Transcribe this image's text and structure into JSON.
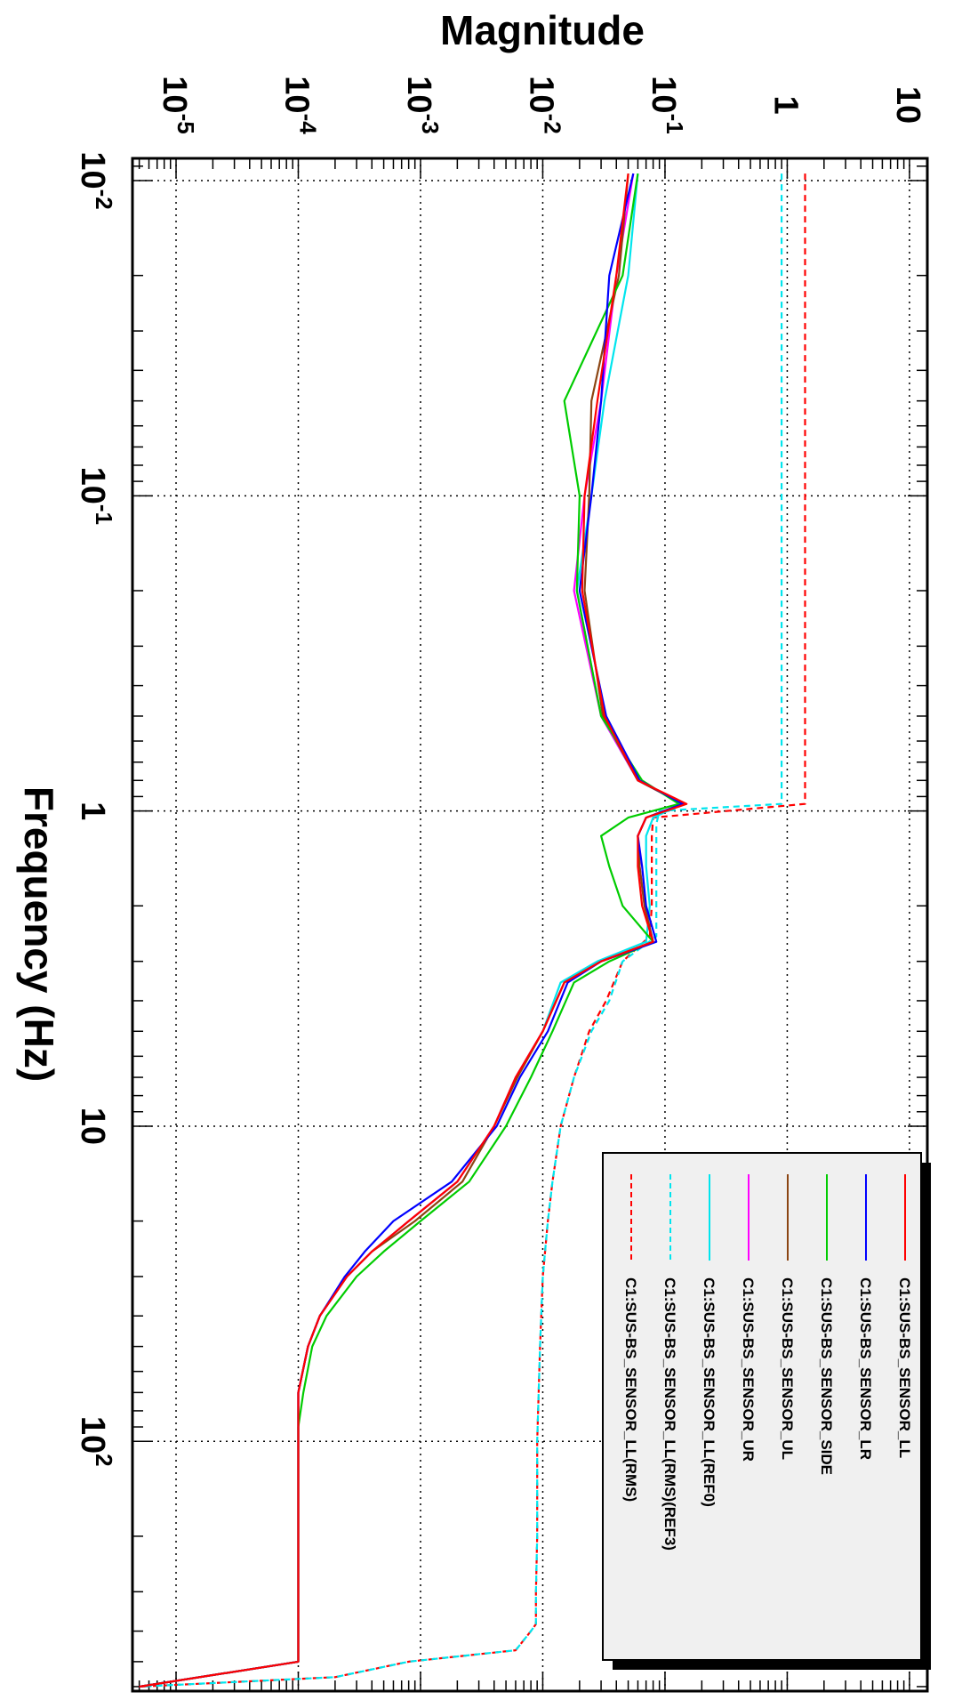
{
  "chart_data": {
    "type": "line",
    "orientation": "rotated-90-clockwise",
    "xlabel": "Frequency (Hz)",
    "ylabel": "Magnitude",
    "x_scale": "log",
    "y_scale": "log",
    "xlim": [
      0.0085,
      620
    ],
    "ylim": [
      4.4e-06,
      14
    ],
    "grid": true,
    "legend_position": "bottom-right",
    "x_ticks": [
      {
        "base": "10",
        "exp": "-2",
        "value": 0.01
      },
      {
        "base": "10",
        "exp": "-1",
        "value": 0.1
      },
      {
        "base": "1",
        "exp": "",
        "value": 1
      },
      {
        "base": "10",
        "exp": "",
        "value": 10
      },
      {
        "base": "10",
        "exp": "2",
        "value": 100
      }
    ],
    "y_ticks": [
      {
        "base": "10",
        "exp": "-5",
        "value": 1e-05
      },
      {
        "base": "10",
        "exp": "-4",
        "value": 0.0001
      },
      {
        "base": "10",
        "exp": "-3",
        "value": 0.001
      },
      {
        "base": "10",
        "exp": "-2",
        "value": 0.01
      },
      {
        "base": "10",
        "exp": "-1",
        "value": 0.1
      },
      {
        "base": "1",
        "exp": "",
        "value": 1
      },
      {
        "base": "10",
        "exp": "",
        "value": 10
      }
    ],
    "series": [
      {
        "name": "C1:SUS-BS_SENSOR_LL",
        "color": "#ff0000",
        "dash": "solid",
        "x": [
          0.0095,
          0.02,
          0.05,
          0.1,
          0.2,
          0.5,
          0.8,
          0.95,
          1.05,
          1.2,
          1.5,
          2.0,
          2.6,
          3.0,
          3.5,
          5,
          7,
          10,
          15,
          20,
          25,
          30,
          40,
          50,
          70,
          90,
          120,
          160,
          200,
          300,
          400,
          500,
          600
        ],
        "y": [
          0.05,
          0.04,
          0.028,
          0.022,
          0.021,
          0.032,
          0.06,
          0.15,
          0.07,
          0.06,
          0.06,
          0.065,
          0.08,
          0.03,
          0.015,
          0.01,
          0.006,
          0.004,
          0.002,
          0.0008,
          0.0004,
          0.00025,
          0.00015,
          0.00012,
          0.0001,
          0.0001,
          0.0001,
          0.0001,
          0.0001,
          0.0001,
          0.0001,
          0.0001,
          5e-06
        ]
      },
      {
        "name": "C1:SUS-BS_SENSOR_LR",
        "color": "#0000ff",
        "dash": "solid",
        "x": [
          0.0095,
          0.02,
          0.05,
          0.1,
          0.2,
          0.5,
          0.8,
          0.95,
          1.05,
          1.2,
          1.5,
          2.0,
          2.6,
          3.0,
          3.5,
          5,
          7,
          10,
          15,
          20,
          25,
          30,
          40,
          50,
          70,
          90,
          120,
          160,
          200,
          300,
          400,
          500,
          600
        ],
        "y": [
          0.055,
          0.035,
          0.03,
          0.025,
          0.02,
          0.033,
          0.062,
          0.14,
          0.07,
          0.06,
          0.065,
          0.07,
          0.085,
          0.03,
          0.016,
          0.011,
          0.0065,
          0.0042,
          0.0018,
          0.0006,
          0.00035,
          0.00024,
          0.00015,
          0.00012,
          0.0001,
          0.0001,
          0.0001,
          0.0001,
          0.0001,
          0.0001,
          0.0001,
          0.0001,
          5e-06
        ]
      },
      {
        "name": "C1:SUS-BS_SENSOR_SIDE",
        "color": "#00cc00",
        "dash": "solid",
        "x": [
          0.0095,
          0.02,
          0.05,
          0.1,
          0.2,
          0.5,
          0.8,
          0.95,
          1.05,
          1.2,
          1.5,
          2.0,
          2.6,
          3.0,
          3.5,
          5,
          7,
          10,
          15,
          20,
          25,
          30,
          40,
          50,
          70,
          90,
          120,
          160,
          200,
          300,
          400,
          500,
          600
        ],
        "y": [
          0.06,
          0.045,
          0.015,
          0.02,
          0.019,
          0.03,
          0.065,
          0.13,
          0.05,
          0.03,
          0.035,
          0.045,
          0.08,
          0.035,
          0.018,
          0.012,
          0.008,
          0.005,
          0.0025,
          0.001,
          0.0005,
          0.0003,
          0.00017,
          0.00013,
          0.00011,
          0.0001,
          0.0001,
          0.0001,
          0.0001,
          0.0001,
          0.0001,
          0.0001,
          5e-06
        ]
      },
      {
        "name": "C1:SUS-BS_SENSOR_UL",
        "color": "#8b4513",
        "dash": "solid",
        "x": [
          0.0095,
          0.02,
          0.05,
          0.1,
          0.2,
          0.5,
          0.8,
          0.95,
          1.05,
          1.2,
          1.5,
          2.0,
          2.6,
          3.0,
          3.5,
          5,
          7,
          10,
          15,
          20,
          25,
          30,
          40,
          50,
          70,
          90,
          120,
          160,
          200,
          300,
          400,
          500,
          600
        ],
        "y": [
          0.05,
          0.042,
          0.025,
          0.024,
          0.022,
          0.031,
          0.06,
          0.14,
          0.07,
          0.06,
          0.062,
          0.068,
          0.08,
          0.03,
          0.015,
          0.01,
          0.0062,
          0.004,
          0.0022,
          0.0009,
          0.0004,
          0.00025,
          0.00015,
          0.00012,
          0.0001,
          0.0001,
          0.0001,
          0.0001,
          0.0001,
          0.0001,
          0.0001,
          0.0001,
          5e-06
        ]
      },
      {
        "name": "C1:SUS-BS_SENSOR_UR",
        "color": "#ff00ff",
        "dash": "solid",
        "x": [
          0.0095,
          0.02,
          0.05,
          0.1,
          0.2,
          0.5,
          0.8,
          0.95,
          1.05,
          1.2,
          1.5,
          2.0,
          2.6,
          3.0,
          3.5,
          5,
          7,
          10,
          15,
          20,
          25,
          30,
          40,
          50,
          70,
          90,
          120,
          160,
          200,
          300,
          400,
          500,
          600
        ],
        "y": [
          0.055,
          0.04,
          0.03,
          0.022,
          0.018,
          0.03,
          0.06,
          0.14,
          0.07,
          0.06,
          0.062,
          0.068,
          0.08,
          0.03,
          0.015,
          0.01,
          0.006,
          0.004,
          0.002,
          0.0008,
          0.0004,
          0.00025,
          0.00015,
          0.00012,
          0.0001,
          0.0001,
          0.0001,
          0.0001,
          0.0001,
          0.0001,
          0.0001,
          0.0001,
          5e-06
        ]
      },
      {
        "name": "C1:SUS-BS_SENSOR_LL(REF0)",
        "color": "#00e5ee",
        "dash": "solid",
        "x": [
          0.0095,
          0.02,
          0.05,
          0.1,
          0.2,
          0.5,
          0.8,
          0.95,
          1.05,
          1.2,
          1.5,
          2.0,
          2.6,
          3.0,
          3.5,
          5,
          7,
          10,
          15,
          20,
          25,
          30,
          40,
          50,
          70,
          90,
          120,
          160,
          200,
          300,
          400,
          500,
          600
        ],
        "y": [
          0.06,
          0.05,
          0.032,
          0.025,
          0.019,
          0.03,
          0.06,
          0.14,
          0.08,
          0.07,
          0.07,
          0.075,
          0.07,
          0.028,
          0.014,
          0.01,
          0.006,
          0.004,
          0.002,
          0.0008,
          0.0004,
          0.00025,
          0.00015,
          0.00012,
          0.0001,
          0.0001,
          0.0001,
          0.0001,
          0.0001,
          0.0001,
          0.0001,
          0.0001,
          5e-06
        ]
      },
      {
        "name": "C1:SUS-BS_SENSOR_LL(RMS)(REF3)",
        "color": "#00e5ee",
        "dash": "dashed",
        "x": [
          0.0095,
          0.5,
          0.95,
          1.0,
          1.1,
          1.2,
          1.5,
          2.0,
          2.5,
          3.0,
          4.0,
          5,
          7,
          10,
          15,
          20,
          30,
          50,
          100,
          200,
          300,
          380,
          400,
          460,
          500,
          560,
          600
        ],
        "y": [
          0.9,
          0.9,
          0.9,
          0.09,
          0.085,
          0.085,
          0.085,
          0.085,
          0.085,
          0.045,
          0.035,
          0.025,
          0.018,
          0.014,
          0.012,
          0.011,
          0.01,
          0.0095,
          0.009,
          0.009,
          0.0088,
          0.0088,
          0.008,
          0.006,
          0.0008,
          0.0002,
          5e-06
        ]
      },
      {
        "name": "C1:SUS-BS_SENSOR_LL(RMS)",
        "color": "#ff0000",
        "dash": "dashed",
        "x": [
          0.0095,
          0.5,
          0.95,
          1.05,
          1.2,
          1.5,
          2.0,
          2.5,
          3.0,
          4.0,
          5,
          7,
          10,
          15,
          20,
          30,
          50,
          100,
          200,
          300,
          380,
          400,
          460,
          500,
          560,
          600
        ],
        "y": [
          1.4,
          1.4,
          1.4,
          0.08,
          0.078,
          0.078,
          0.078,
          0.075,
          0.045,
          0.033,
          0.024,
          0.018,
          0.014,
          0.012,
          0.011,
          0.01,
          0.0095,
          0.009,
          0.009,
          0.0088,
          0.0088,
          0.008,
          0.006,
          0.0008,
          0.0002,
          5e-06
        ]
      }
    ]
  }
}
